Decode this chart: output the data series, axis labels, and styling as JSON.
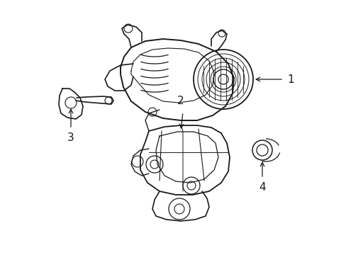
{
  "background_color": "#ffffff",
  "line_color": "#1a1a1a",
  "label_color": "#000000",
  "figsize": [
    4.89,
    3.6
  ],
  "dpi": 100,
  "img_data": ""
}
